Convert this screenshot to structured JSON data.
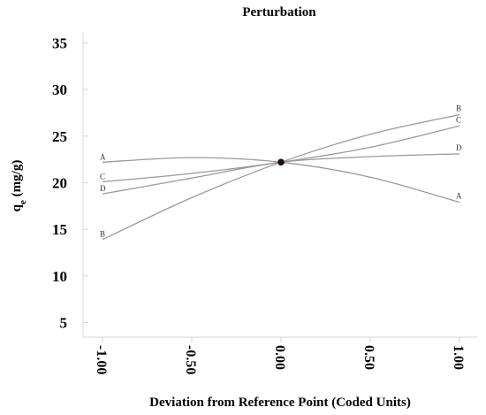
{
  "chart_data": {
    "type": "line",
    "title": "Perturbation",
    "xlabel": "Deviation from Reference Point (Coded Units)",
    "ylabel_main": "q",
    "ylabel_sub": "e",
    "ylabel_unit": " (mg/g)",
    "xlim": [
      -1.0,
      1.0
    ],
    "ylim": [
      4,
      36
    ],
    "x_ticks": [
      -1.0,
      -0.5,
      0.0,
      0.5,
      1.0
    ],
    "x_tick_labels": [
      "-1.00",
      "-0.50",
      "0.00",
      "0.50",
      "1.00"
    ],
    "y_ticks": [
      5,
      10,
      15,
      20,
      25,
      30,
      35
    ],
    "y_tick_labels": [
      "5",
      "10",
      "15",
      "20",
      "25",
      "30",
      "35"
    ],
    "reference_point": {
      "x": 0.0,
      "y": 22.2
    },
    "series": [
      {
        "name": "A",
        "x": [
          -1.0,
          -0.5,
          0.0,
          0.5,
          1.0
        ],
        "y": [
          22.2,
          22.7,
          22.2,
          20.6,
          17.9
        ]
      },
      {
        "name": "B",
        "x": [
          -1.0,
          -0.5,
          0.0,
          0.5,
          1.0
        ],
        "y": [
          13.9,
          18.4,
          22.2,
          25.2,
          27.3
        ]
      },
      {
        "name": "C",
        "x": [
          -1.0,
          -0.5,
          0.0,
          0.5,
          1.0
        ],
        "y": [
          20.1,
          21.0,
          22.2,
          23.8,
          26.1
        ]
      },
      {
        "name": "D",
        "x": [
          -1.0,
          -0.5,
          0.0,
          0.5,
          1.0
        ],
        "y": [
          18.8,
          20.5,
          22.2,
          22.8,
          23.1
        ]
      }
    ],
    "grid": false,
    "legend": "none"
  }
}
